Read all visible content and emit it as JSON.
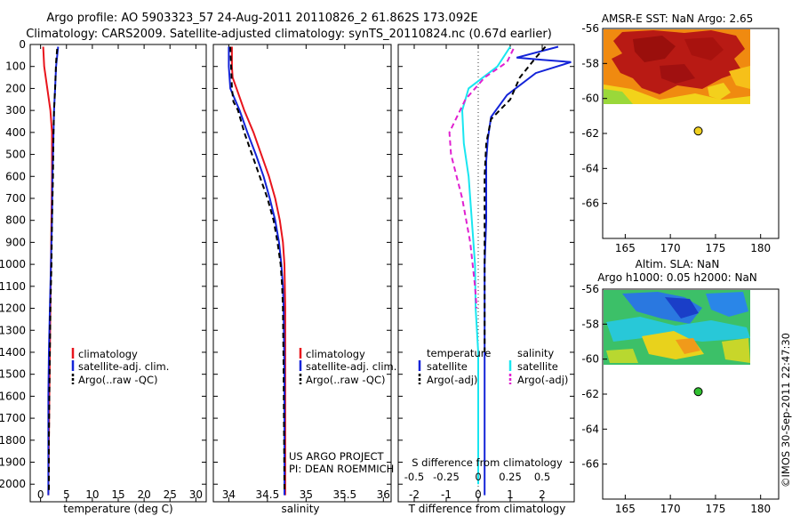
{
  "title": {
    "line1": "Argo profile: AO 5903323_57 24-Aug-2011 20110826_2 61.862S 173.092E",
    "line2": "Climatology: CARS2009. Satellite-adjusted climatology: synTS_20110824.nc (0.67d earlier)"
  },
  "colors": {
    "red": "#e8141c",
    "blue": "#1424d8",
    "black": "#000000",
    "cyan": "#19e6f0",
    "magenta": "#e020d0"
  },
  "side_text": "©IMOS 30-Sep-2011 22:47:30",
  "chart_data": [
    {
      "type": "line",
      "xlabel": "temperature (deg C)",
      "ylabel": "",
      "xlim": [
        -2,
        32
      ],
      "ylim": [
        2080,
        0
      ],
      "xticks": [
        0,
        5,
        10,
        15,
        20,
        25,
        30
      ],
      "yticks": [
        0,
        100,
        200,
        300,
        400,
        500,
        600,
        700,
        800,
        900,
        1000,
        1100,
        1200,
        1300,
        1400,
        1500,
        1600,
        1700,
        1800,
        1900,
        2000
      ],
      "legend": [
        "climatology",
        "satellite-adj. clim.",
        "Argo(..raw -QC)"
      ],
      "legend_placement": "lower-right",
      "series": [
        {
          "name": "climatology",
          "color": "red",
          "dash": "",
          "x": [
            0.5,
            0.7,
            1.3,
            1.9,
            2.2,
            2.2,
            2.1,
            2.0,
            1.9,
            1.8,
            1.7,
            1.6,
            1.5
          ],
          "y": [
            10,
            100,
            200,
            300,
            400,
            600,
            800,
            1000,
            1200,
            1400,
            1600,
            1800,
            2050
          ]
        },
        {
          "name": "satellite-adj. clim.",
          "color": "blue",
          "dash": "",
          "x": [
            3.4,
            3.0,
            2.8,
            2.6,
            2.5,
            2.3,
            2.2,
            2.0,
            1.8,
            1.6,
            1.5,
            1.5
          ],
          "y": [
            10,
            100,
            200,
            300,
            400,
            600,
            800,
            1000,
            1200,
            1400,
            1600,
            2050
          ]
        },
        {
          "name": "Argo(..raw -QC)",
          "color": "black",
          "dash": "6,4",
          "x": [
            3.2,
            3.0,
            2.8,
            2.6,
            2.5,
            2.4,
            2.2,
            2.1,
            1.9,
            1.8,
            1.7,
            1.6,
            1.6
          ],
          "y": [
            20,
            80,
            200,
            300,
            400,
            600,
            800,
            1000,
            1200,
            1400,
            1600,
            1800,
            2030
          ]
        }
      ]
    },
    {
      "type": "line",
      "xlabel": "salinity",
      "ylabel": "",
      "xlim": [
        33.8,
        36.1
      ],
      "ylim": [
        2080,
        0
      ],
      "xticks": [
        34,
        34.5,
        35,
        35.5,
        36
      ],
      "xticklabels": [
        "34",
        "34.5",
        "35",
        "35.5",
        "36"
      ],
      "legend": [
        "climatology",
        "satellite-adj. clim.",
        "Argo(..raw -QC)"
      ],
      "legend_placement": "lower-right",
      "annotation_lines": [
        "US ARGO PROJECT",
        "PI: DEAN ROEMMICH"
      ],
      "series": [
        {
          "name": "climatology",
          "color": "red",
          "dash": "",
          "x": [
            34.04,
            34.04,
            34.05,
            34.1,
            34.2,
            34.32,
            34.42,
            34.52,
            34.6,
            34.66,
            34.7,
            34.72,
            34.73,
            34.73,
            34.73
          ],
          "y": [
            10,
            100,
            150,
            200,
            300,
            400,
            500,
            600,
            700,
            800,
            900,
            1000,
            1200,
            1500,
            2050
          ]
        },
        {
          "name": "satellite-adj. clim.",
          "color": "blue",
          "dash": "",
          "x": [
            34.0,
            34.0,
            34.02,
            34.08,
            34.14,
            34.24,
            34.35,
            34.45,
            34.53,
            34.6,
            34.65,
            34.68,
            34.7,
            34.71,
            34.72,
            34.72
          ],
          "y": [
            10,
            100,
            200,
            250,
            300,
            400,
            500,
            600,
            700,
            800,
            900,
            1000,
            1100,
            1200,
            1500,
            2050
          ]
        },
        {
          "name": "Argo(..raw -QC)",
          "color": "black",
          "dash": "6,4",
          "x": [
            34.02,
            34.03,
            34.04,
            34.06,
            34.12,
            34.2,
            34.3,
            34.4,
            34.5,
            34.58,
            34.63,
            34.67,
            34.69,
            34.7,
            34.71,
            34.72
          ],
          "y": [
            10,
            100,
            200,
            260,
            300,
            400,
            500,
            600,
            700,
            800,
            900,
            1000,
            1100,
            1200,
            1500,
            2030
          ]
        }
      ]
    },
    {
      "type": "line",
      "xlabel": "T difference from climatology",
      "xlabel_top": "S difference from climatology",
      "xlim": [
        -2.5,
        3.0
      ],
      "ylim": [
        2080,
        0
      ],
      "xticks": [
        -2,
        -1,
        0,
        1,
        2
      ],
      "top_ticklabels": [
        "-0.5",
        "-0.25",
        "0",
        "0.25",
        "0.5"
      ],
      "legend": [
        "temperature",
        "satellite",
        "Argo(-adj)",
        "salinity",
        "satellite",
        "Argo(-adj)"
      ],
      "legend_placement": "lower",
      "series": [
        {
          "name": "satellite",
          "color": "blue",
          "dash": "",
          "x": [
            2.5,
            1.2,
            2.0,
            2.9,
            1.8,
            0.9,
            0.4,
            0.3,
            0.25,
            0.25,
            0.25,
            0.2,
            0.2,
            0.2,
            0.2,
            0.2,
            0.2,
            0.2
          ],
          "y": [
            10,
            60,
            70,
            80,
            130,
            230,
            330,
            430,
            530,
            630,
            800,
            1000,
            1200,
            1400,
            1600,
            1800,
            1900,
            2050
          ]
        },
        {
          "name": "Argo(-adj)",
          "color": "black",
          "dash": "6,4",
          "x": [
            2.1,
            1.8,
            1.3,
            1.0,
            0.4,
            0.25,
            0.2,
            0.2,
            0.2,
            0.2,
            0.2
          ],
          "y": [
            10,
            60,
            150,
            250,
            340,
            450,
            600,
            800,
            1000,
            1200,
            1400
          ]
        },
        {
          "name": "satellite",
          "color": "cyan",
          "dash": "",
          "x": [
            1.0,
            0.6,
            0.15,
            -0.3,
            -0.5,
            -0.45,
            -0.3,
            -0.2,
            -0.1,
            -0.08,
            0.0,
            0.0,
            0.0,
            0.0
          ],
          "y": [
            10,
            100,
            150,
            200,
            300,
            450,
            600,
            800,
            1000,
            1200,
            1400,
            1600,
            1800,
            2000
          ]
        },
        {
          "name": "Argo(-adj)",
          "color": "magenta",
          "dash": "6,4",
          "x": [
            1.1,
            0.9,
            0.2,
            -0.4,
            -0.9,
            -0.85,
            -0.5,
            -0.25,
            -0.1,
            -0.05
          ],
          "y": [
            20,
            80,
            150,
            250,
            400,
            500,
            700,
            900,
            1100,
            1200
          ]
        }
      ]
    },
    {
      "type": "heatmap",
      "title": "AMSR-E SST: NaN Argo: 2.65",
      "xlim": [
        162.5,
        182
      ],
      "ylim": [
        -68,
        -56
      ],
      "xticks": [
        165,
        170,
        175,
        180
      ],
      "yticks": [
        -56,
        -58,
        -60,
        -62,
        -64,
        -66
      ],
      "marker": {
        "x": 173.09,
        "y": -61.86,
        "color": "#f0d020"
      }
    },
    {
      "type": "heatmap",
      "title": "Altim. SLA: NaN",
      "subtitle": "Argo h1000: 0.05 h2000: NaN",
      "xlim": [
        162.5,
        182
      ],
      "ylim": [
        -68,
        -56
      ],
      "xticks": [
        165,
        170,
        175,
        180
      ],
      "yticks": [
        -56,
        -58,
        -60,
        -62,
        -64,
        -66
      ],
      "marker": {
        "x": 173.09,
        "y": -61.86,
        "color": "#30c030"
      }
    }
  ]
}
